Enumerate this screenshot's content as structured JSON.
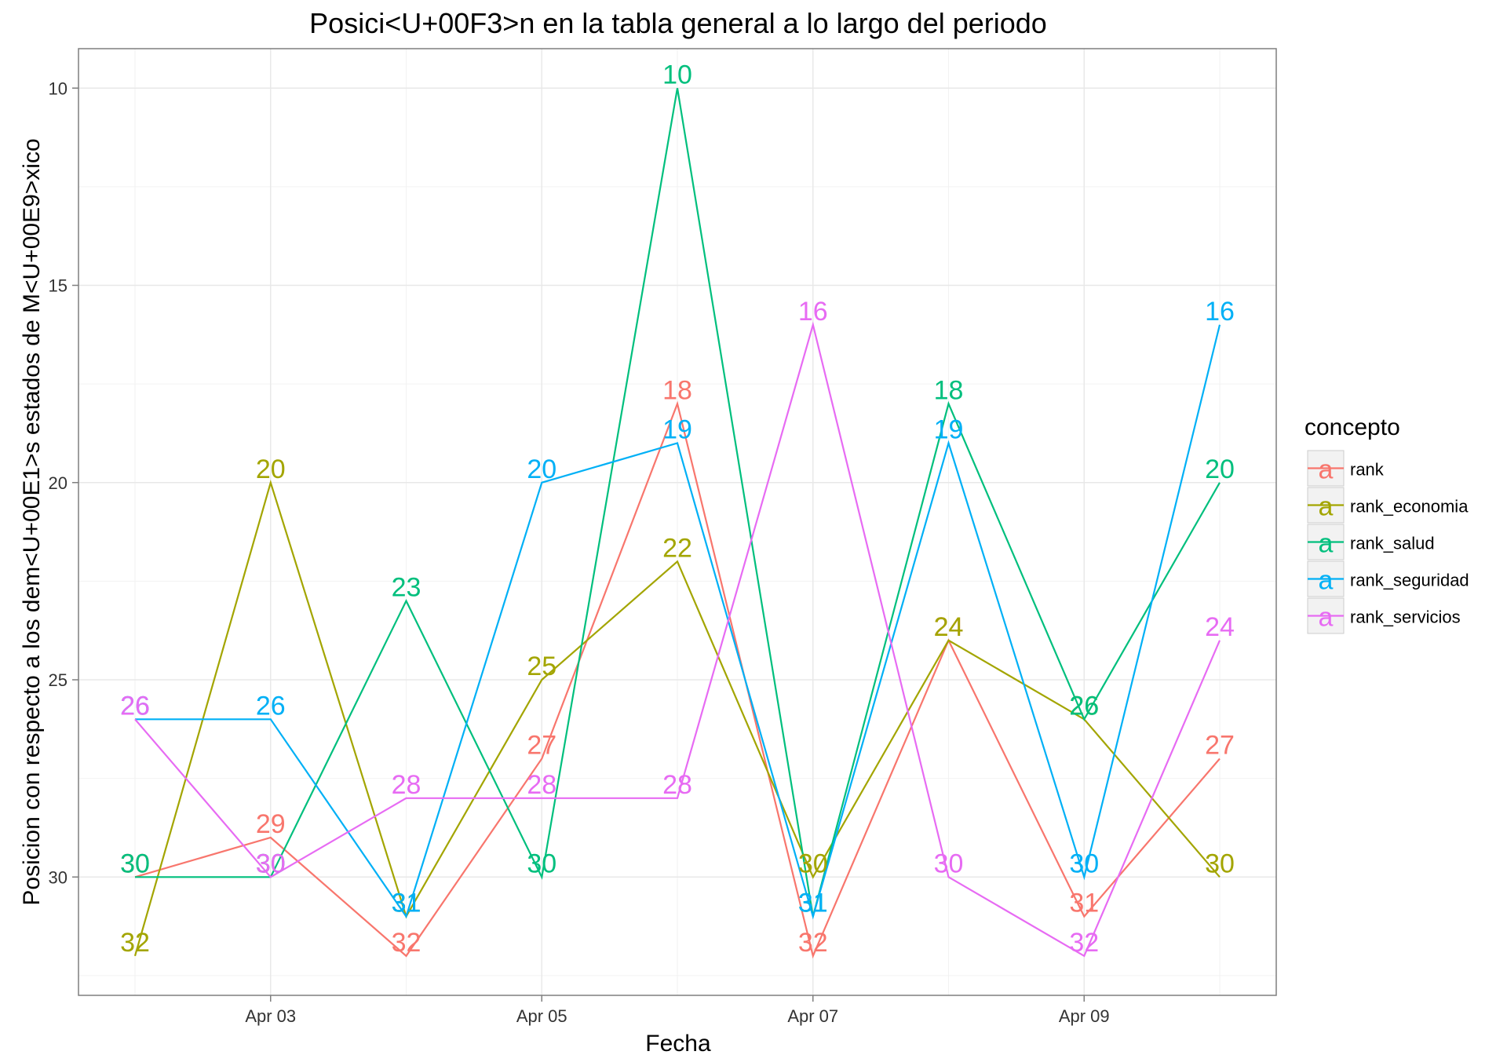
{
  "chart_data": {
    "type": "line",
    "title": "Posici<U+00F3>n en la tabla general a lo largo del periodo",
    "xlabel": "Fecha",
    "ylabel": "Posicion con respecto a los dem<U+00E1>s estados de M<U+00E9>xico",
    "x": [
      "Apr 02",
      "Apr 03",
      "Apr 04",
      "Apr 05",
      "Apr 06",
      "Apr 07",
      "Apr 08",
      "Apr 09",
      "Apr 10"
    ],
    "x_ticks": [
      "Apr 03",
      "Apr 05",
      "Apr 07",
      "Apr 09"
    ],
    "y_ticks": [
      10,
      15,
      20,
      25,
      30
    ],
    "ylim": [
      33,
      9
    ],
    "y_reversed": true,
    "grid": true,
    "legend": {
      "title": "concepto",
      "position": "right",
      "key_glyph": "a"
    },
    "series": [
      {
        "name": "rank",
        "color": "#F8766D",
        "values": [
          30,
          29,
          32,
          27,
          18,
          32,
          24,
          31,
          27
        ]
      },
      {
        "name": "rank_economia",
        "color": "#A3A500",
        "values": [
          32,
          20,
          31,
          25,
          22,
          30,
          24,
          26,
          30
        ]
      },
      {
        "name": "rank_salud",
        "color": "#00BF7D",
        "values": [
          30,
          30,
          23,
          30,
          10,
          31,
          18,
          26,
          20
        ]
      },
      {
        "name": "rank_seguridad",
        "color": "#00B0F6",
        "values": [
          26,
          26,
          31,
          20,
          19,
          31,
          19,
          30,
          16
        ]
      },
      {
        "name": "rank_servicios",
        "color": "#E76BF3",
        "values": [
          26,
          30,
          28,
          28,
          28,
          16,
          30,
          32,
          24
        ]
      }
    ]
  }
}
